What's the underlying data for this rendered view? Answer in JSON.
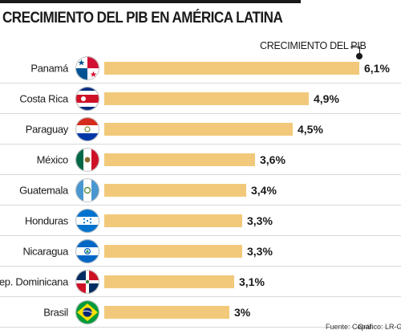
{
  "chart_data": {
    "type": "bar",
    "title": "CRECIMIENTO DEL PIB EN AMÉRICA LATINA",
    "legend": "CRECIMIENTO DEL PIB",
    "legend_position": "top-right",
    "orientation": "horizontal",
    "xlim": [
      0,
      6.1
    ],
    "bar_color": "#f2c97a",
    "categories": [
      "Panamá",
      "Costa Rica",
      "Paraguay",
      "México",
      "Guatemala",
      "Honduras",
      "Nicaragua",
      "Rep. Dominicana",
      "Brasil"
    ],
    "values": [
      6.1,
      4.9,
      4.5,
      3.6,
      3.4,
      3.3,
      3.3,
      3.1,
      3.0
    ],
    "value_labels": [
      "6,1%",
      "4,9%",
      "4,5%",
      "3,6%",
      "3,4%",
      "3,3%",
      "3,3%",
      "3,1%",
      "3%"
    ],
    "flags": [
      "panama-flag-icon",
      "costa-rica-flag-icon",
      "paraguay-flag-icon",
      "mexico-flag-icon",
      "guatemala-flag-icon",
      "honduras-flag-icon",
      "nicaragua-flag-icon",
      "dominican-republic-flag-icon",
      "brazil-flag-icon"
    ]
  },
  "footer": {
    "source": "Fuente: Cepal",
    "credit": "Gráfico: LR-GR"
  }
}
